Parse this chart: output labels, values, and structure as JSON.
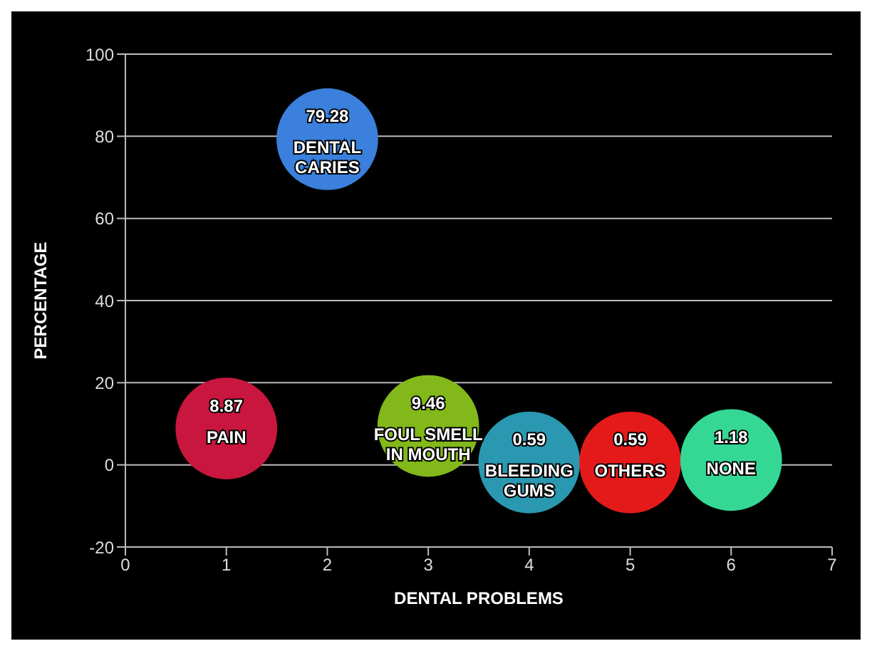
{
  "chart_data": {
    "type": "bubble",
    "xlabel": "DENTAL PROBLEMS",
    "ylabel": "PERCENTAGE",
    "x": [
      1,
      2,
      3,
      4,
      5,
      6
    ],
    "values": [
      8.87,
      79.28,
      9.46,
      0.59,
      0.59,
      1.18
    ],
    "sizes": [
      1,
      1,
      1,
      1,
      1,
      1
    ],
    "colors": [
      "#c8163e",
      "#3a80dc",
      "#82b81a",
      "#2a98b0",
      "#e41a1a",
      "#34d894"
    ],
    "data_labels": true,
    "annotations": [
      {
        "text": "PAIN",
        "x": 1,
        "y": 8.87
      },
      {
        "text": "DENTAL CARIES",
        "x": 2,
        "y": 79.28
      },
      {
        "text": "FOUL SMELL IN MOUTH",
        "x": 3,
        "y": 9.46
      },
      {
        "text": "BLEEDING GUMS",
        "x": 4,
        "y": 0.59
      },
      {
        "text": "OTHERS",
        "x": 5,
        "y": 0.59
      },
      {
        "text": "NONE",
        "x": 6,
        "y": 1.18
      }
    ],
    "xlim": [
      0,
      7
    ],
    "xticks": [
      0,
      1,
      2,
      3,
      4,
      5,
      6,
      7
    ],
    "ylim": [
      -20,
      100
    ],
    "yticks": [
      -20,
      0,
      20,
      40,
      60,
      80,
      100
    ],
    "grid": "y"
  }
}
